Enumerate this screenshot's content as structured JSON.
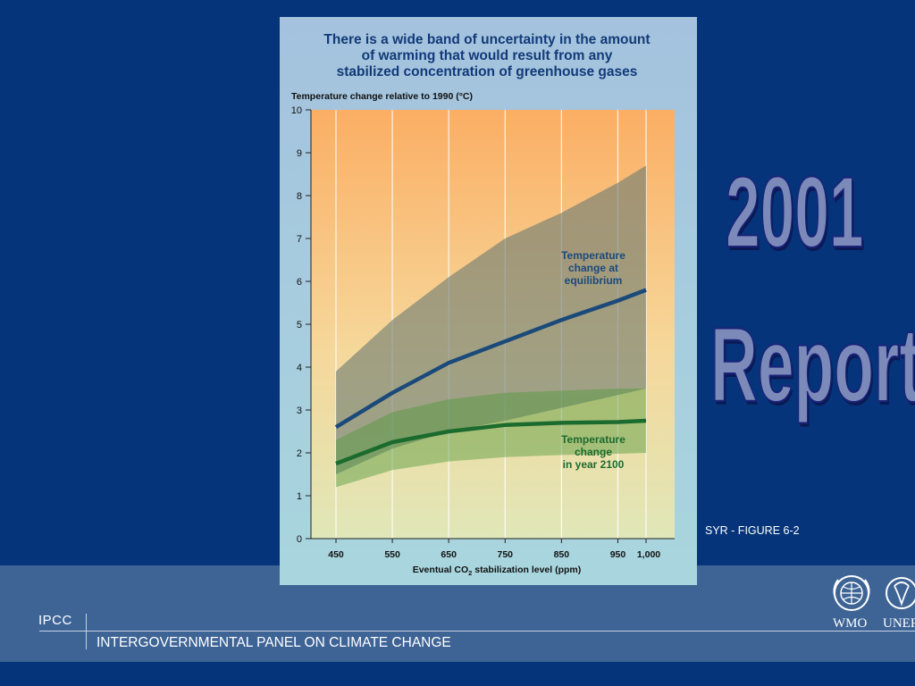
{
  "slide": {
    "decor_year": "2001",
    "decor_word": "Report",
    "figure_label": "SYR - FIGURE 6-2"
  },
  "footer": {
    "acronym": "IPCC",
    "full_name": "INTERGOVERNMENTAL PANEL ON CLIMATE CHANGE",
    "logo_wmo": "WMO",
    "logo_unep": "UNEP"
  },
  "colors": {
    "background": "#05347a",
    "footer_band": "#3e6496",
    "equilibrium_line": "#1b4a7a",
    "year2100_line": "#1c6b2e"
  },
  "chart_data": {
    "type": "line",
    "title_lines": [
      "There is a wide band of uncertainty in the amount",
      "of warming that would result from any",
      "stabilized concentration of greenhouse gases"
    ],
    "ylabel": "Temperature change relative to 1990 (°C)",
    "xlabel_prefix": "Eventual CO",
    "xlabel_sub": "2",
    "xlabel_suffix": " stabilization level (ppm)",
    "x": [
      450,
      550,
      650,
      750,
      850,
      950,
      1000
    ],
    "x_tick_labels": [
      "450",
      "550",
      "650",
      "750",
      "850",
      "950",
      "1,000"
    ],
    "y_ticks": [
      "0",
      "1",
      "2",
      "3",
      "4",
      "5",
      "6",
      "7",
      "8",
      "9",
      "10"
    ],
    "xlim": [
      450,
      1000
    ],
    "ylim": [
      0,
      10
    ],
    "grid": true,
    "series": [
      {
        "name": "Temperature change at equilibrium",
        "label_lines": [
          "Temperature",
          "change at",
          "equilibrium"
        ],
        "color": "#1b4a7a",
        "x": [
          450,
          550,
          650,
          750,
          850,
          950,
          1000
        ],
        "values": [
          2.6,
          3.4,
          4.1,
          4.6,
          5.1,
          5.55,
          5.8
        ],
        "band_upper": [
          3.9,
          5.1,
          6.1,
          7.0,
          7.6,
          8.3,
          8.7
        ],
        "band_lower": [
          1.5,
          2.1,
          2.5,
          2.75,
          3.05,
          3.35,
          3.5
        ]
      },
      {
        "name": "Temperature change in year 2100",
        "label_lines": [
          "Temperature",
          "change",
          "in year 2100"
        ],
        "color": "#1c6b2e",
        "x": [
          450,
          550,
          650,
          750,
          850,
          950,
          1000
        ],
        "values": [
          1.75,
          2.25,
          2.5,
          2.65,
          2.7,
          2.72,
          2.75
        ],
        "band_upper": [
          2.3,
          2.95,
          3.25,
          3.4,
          3.45,
          3.5,
          3.5
        ],
        "band_lower": [
          1.2,
          1.6,
          1.8,
          1.9,
          1.95,
          1.98,
          2.0
        ]
      }
    ]
  }
}
